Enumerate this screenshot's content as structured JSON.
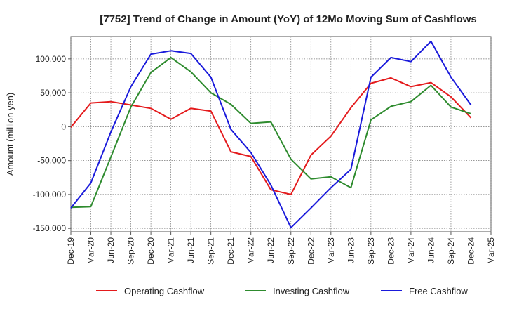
{
  "chart_data": {
    "type": "line",
    "title": "[7752]  Trend of Change in Amount (YoY) of 12Mo Moving Sum of Cashflows",
    "ylabel": "Amount (million yen)",
    "xlabel": "",
    "ylim": [
      -155000,
      133000
    ],
    "yticks": [
      100000,
      50000,
      0,
      -50000,
      -100000,
      -150000
    ],
    "ytick_labels": [
      "100,000",
      "50,000",
      "0",
      "-50,000",
      "-100,000",
      "-150,000"
    ],
    "grid": true,
    "legend": "bottom",
    "categories": [
      "Dec-19",
      "Mar-20",
      "Jun-20",
      "Sep-20",
      "Dec-20",
      "Mar-21",
      "Jun-21",
      "Sep-21",
      "Dec-21",
      "Mar-22",
      "Jun-22",
      "Sep-22",
      "Dec-22",
      "Mar-23",
      "Jun-23",
      "Sep-23",
      "Dec-23",
      "Mar-24",
      "Jun-24",
      "Sep-24",
      "Dec-24",
      "Mar-25"
    ],
    "series": [
      {
        "name": "Operating Cashflow",
        "color": "#e41a1c",
        "values": [
          -1000,
          35000,
          37000,
          32000,
          27000,
          11000,
          27000,
          23000,
          -37000,
          -44000,
          -93000,
          -100000,
          -42000,
          -14000,
          28000,
          64000,
          72000,
          59000,
          65000,
          44000,
          13000,
          null
        ]
      },
      {
        "name": "Investing Cashflow",
        "color": "#2e8b2e",
        "values": [
          -119000,
          -118000,
          -45000,
          29000,
          80000,
          102000,
          81000,
          50000,
          33000,
          5000,
          7000,
          -48000,
          -77000,
          -74000,
          -90000,
          10000,
          30000,
          37000,
          61000,
          29000,
          19000,
          null
        ]
      },
      {
        "name": "Free Cashflow",
        "color": "#1a1adb",
        "values": [
          -120000,
          -83000,
          -8000,
          59000,
          107000,
          112000,
          108000,
          73000,
          -4000,
          -38000,
          -86000,
          -149000,
          -120000,
          -90000,
          -63000,
          73000,
          102000,
          96000,
          126000,
          73000,
          32000,
          null
        ]
      }
    ]
  }
}
